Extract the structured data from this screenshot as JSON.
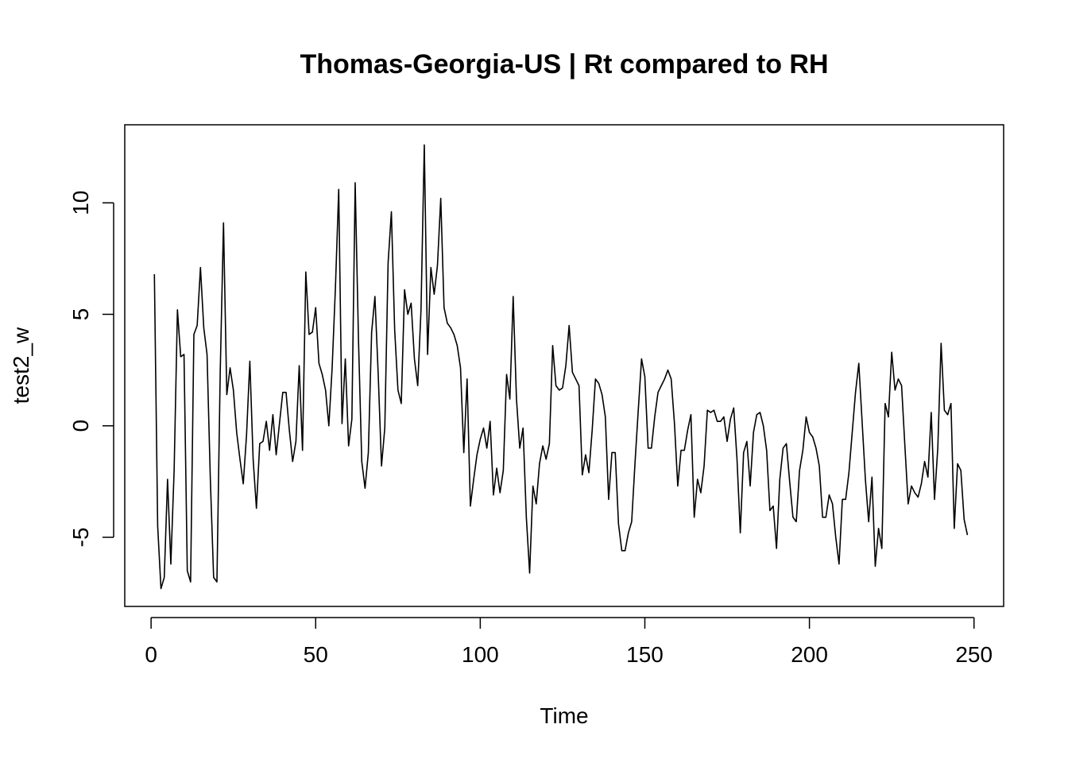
{
  "chart_data": {
    "type": "line",
    "title": "Thomas-Georgia-US | Rt compared to RH",
    "xlabel": "Time",
    "ylabel": "test2_w",
    "xlim": [
      -8,
      259
    ],
    "ylim": [
      -8.1,
      13.5
    ],
    "xticks": [
      0,
      50,
      100,
      150,
      200,
      250
    ],
    "xtick_labels": [
      "0",
      "50",
      "100",
      "150",
      "200",
      "250"
    ],
    "yticks": [
      -5,
      0,
      5,
      10
    ],
    "ytick_labels": [
      "-5",
      "0",
      "5",
      "10"
    ],
    "grid": false,
    "legend": "none",
    "series": [
      {
        "color": "#000000",
        "x": [
          1,
          2,
          3,
          4,
          5,
          6,
          7,
          8,
          9,
          10,
          11,
          12,
          13,
          14,
          15,
          16,
          17,
          18,
          19,
          20,
          21,
          22,
          23,
          24,
          25,
          26,
          27,
          28,
          29,
          30,
          31,
          32,
          33,
          34,
          35,
          36,
          37,
          38,
          39,
          40,
          41,
          42,
          43,
          44,
          45,
          46,
          47,
          48,
          49,
          50,
          51,
          52,
          53,
          54,
          55,
          56,
          57,
          58,
          59,
          60,
          61,
          62,
          63,
          64,
          65,
          66,
          67,
          68,
          69,
          70,
          71,
          72,
          73,
          74,
          75,
          76,
          77,
          78,
          79,
          80,
          81,
          82,
          83,
          84,
          85,
          86,
          87,
          88,
          89,
          90,
          91,
          92,
          93,
          94,
          95,
          96,
          97,
          98,
          99,
          100,
          101,
          102,
          103,
          104,
          105,
          106,
          107,
          108,
          109,
          110,
          111,
          112,
          113,
          114,
          115,
          116,
          117,
          118,
          119,
          120,
          121,
          122,
          123,
          124,
          125,
          126,
          127,
          128,
          129,
          130,
          131,
          132,
          133,
          134,
          135,
          136,
          137,
          138,
          139,
          140,
          141,
          142,
          143,
          144,
          145,
          146,
          147,
          148,
          149,
          150,
          151,
          152,
          153,
          154,
          155,
          156,
          157,
          158,
          159,
          160,
          161,
          162,
          163,
          164,
          165,
          166,
          167,
          168,
          169,
          170,
          171,
          172,
          173,
          174,
          175,
          176,
          177,
          178,
          179,
          180,
          181,
          182,
          183,
          184,
          185,
          186,
          187,
          188,
          189,
          190,
          191,
          192,
          193,
          194,
          195,
          196,
          197,
          198,
          199,
          200,
          201,
          202,
          203,
          204,
          205,
          206,
          207,
          208,
          209,
          210,
          211,
          212,
          213,
          214,
          215,
          216,
          217,
          218,
          219,
          220,
          221,
          222,
          223,
          224,
          225,
          226,
          227,
          228,
          229,
          230,
          231,
          232,
          233,
          234,
          235,
          236,
          237,
          238,
          239,
          240,
          241,
          242,
          243,
          244,
          245,
          246,
          247,
          248
        ],
        "y": [
          6.8,
          -4.5,
          -7.3,
          -6.8,
          -2.4,
          -6.2,
          -2.0,
          5.2,
          3.1,
          3.2,
          -6.5,
          -7.0,
          4.1,
          4.5,
          7.1,
          4.4,
          3.2,
          -2.4,
          -6.8,
          -7.0,
          2.4,
          9.1,
          1.4,
          2.6,
          1.6,
          -0.3,
          -1.5,
          -2.6,
          -0.4,
          2.9,
          -1.5,
          -3.7,
          -0.8,
          -0.7,
          0.2,
          -1.1,
          0.5,
          -1.3,
          0.1,
          1.5,
          1.5,
          -0.2,
          -1.6,
          -0.7,
          2.7,
          -1.1,
          6.9,
          4.1,
          4.2,
          5.3,
          2.8,
          2.3,
          1.6,
          0.0,
          2.6,
          6.2,
          10.6,
          0.1,
          3.0,
          -0.9,
          0.3,
          10.9,
          3.9,
          -1.6,
          -2.8,
          -1.2,
          4.2,
          5.8,
          2.3,
          -1.8,
          -0.1,
          7.3,
          9.6,
          4.3,
          1.6,
          1.0,
          6.1,
          5.0,
          5.5,
          3.0,
          1.8,
          5.2,
          12.6,
          3.2,
          7.1,
          5.9,
          7.2,
          10.2,
          5.3,
          4.6,
          4.4,
          4.1,
          3.6,
          2.6,
          -1.2,
          2.1,
          -3.6,
          -2.4,
          -1.3,
          -0.6,
          -0.1,
          -1.0,
          0.2,
          -3.1,
          -1.9,
          -3.0,
          -2.0,
          2.3,
          1.2,
          5.8,
          1.2,
          -1.0,
          -0.1,
          -4.1,
          -6.6,
          -2.7,
          -3.5,
          -1.7,
          -0.9,
          -1.5,
          -0.8,
          3.6,
          1.8,
          1.6,
          1.7,
          2.7,
          4.5,
          2.4,
          2.1,
          1.8,
          -2.2,
          -1.3,
          -2.1,
          -0.2,
          2.1,
          1.9,
          1.4,
          0.4,
          -3.3,
          -1.2,
          -1.2,
          -4.4,
          -5.6,
          -5.6,
          -4.8,
          -4.3,
          -1.7,
          0.7,
          3.0,
          2.2,
          -1.0,
          -1.0,
          0.4,
          1.5,
          1.8,
          2.1,
          2.5,
          2.1,
          0.1,
          -2.7,
          -1.1,
          -1.1,
          -0.2,
          0.5,
          -4.1,
          -2.4,
          -3.0,
          -1.8,
          0.7,
          0.6,
          0.7,
          0.2,
          0.2,
          0.4,
          -0.7,
          0.3,
          0.8,
          -1.5,
          -4.8,
          -1.2,
          -0.7,
          -2.7,
          -0.3,
          0.5,
          0.6,
          0.0,
          -1.1,
          -3.8,
          -3.6,
          -5.5,
          -2.4,
          -1.0,
          -0.8,
          -2.5,
          -4.1,
          -4.3,
          -2.0,
          -1.1,
          0.4,
          -0.3,
          -0.5,
          -1.0,
          -1.8,
          -4.1,
          -4.1,
          -3.1,
          -3.5,
          -5.0,
          -6.2,
          -3.3,
          -3.3,
          -2.1,
          -0.3,
          1.5,
          2.8,
          0.2,
          -2.4,
          -4.3,
          -2.3,
          -6.3,
          -4.6,
          -5.5,
          1.0,
          0.4,
          3.3,
          1.6,
          2.1,
          1.8,
          -0.9,
          -3.5,
          -2.7,
          -3.0,
          -3.2,
          -2.6,
          -1.6,
          -2.3,
          0.6,
          -3.3,
          -1.0,
          3.7,
          0.7,
          0.5,
          1.0,
          -4.6,
          -1.7,
          -2.0,
          -4.2,
          -4.9
        ]
      }
    ]
  }
}
